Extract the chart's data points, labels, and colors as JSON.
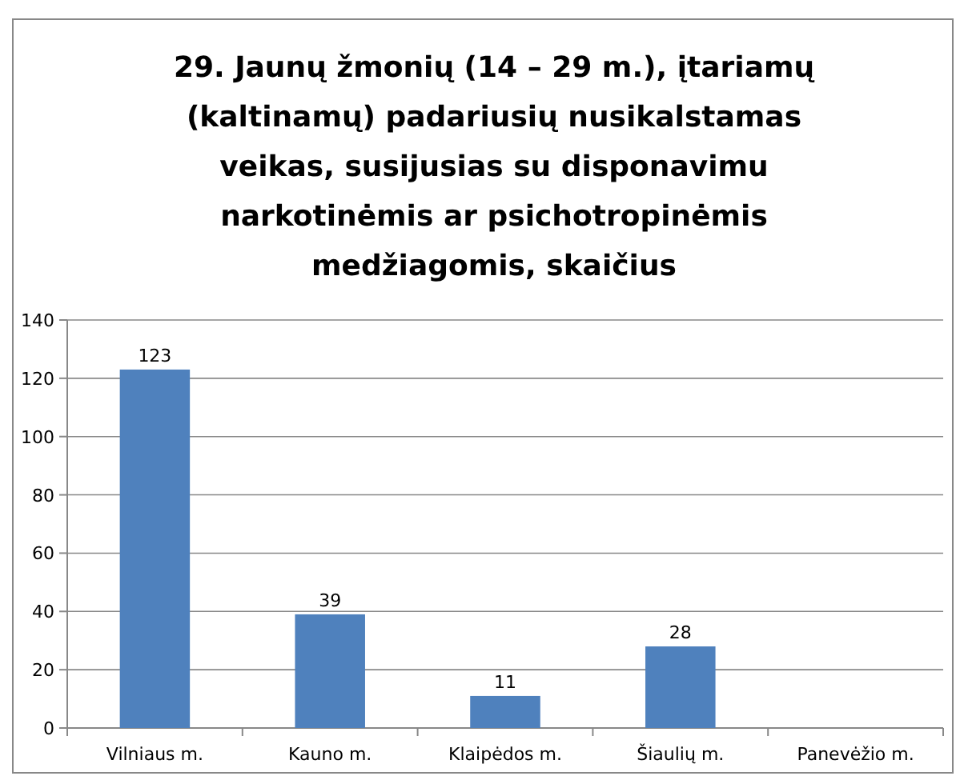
{
  "chart_data": {
    "type": "bar",
    "title": "29. Jaunų žmonių (14 – 29 m.), įtariamų (kaltinamų) padariusių nusikalstamas veikas, susijusias su disponavimu narkotinėmis ar psichotropinėmis medžiagomis, skaičius",
    "categories": [
      "Vilniaus m.",
      "Kauno m.",
      "Klaipėdos m.",
      "Šiaulių m.",
      "Panevėžio m."
    ],
    "values": [
      123,
      39,
      11,
      28,
      null
    ],
    "color": "#4f81bd",
    "data_labels": true,
    "ylim": [
      0,
      140
    ],
    "yticks": [
      0,
      20,
      40,
      60,
      80,
      100,
      120,
      140
    ],
    "grid": "y"
  }
}
